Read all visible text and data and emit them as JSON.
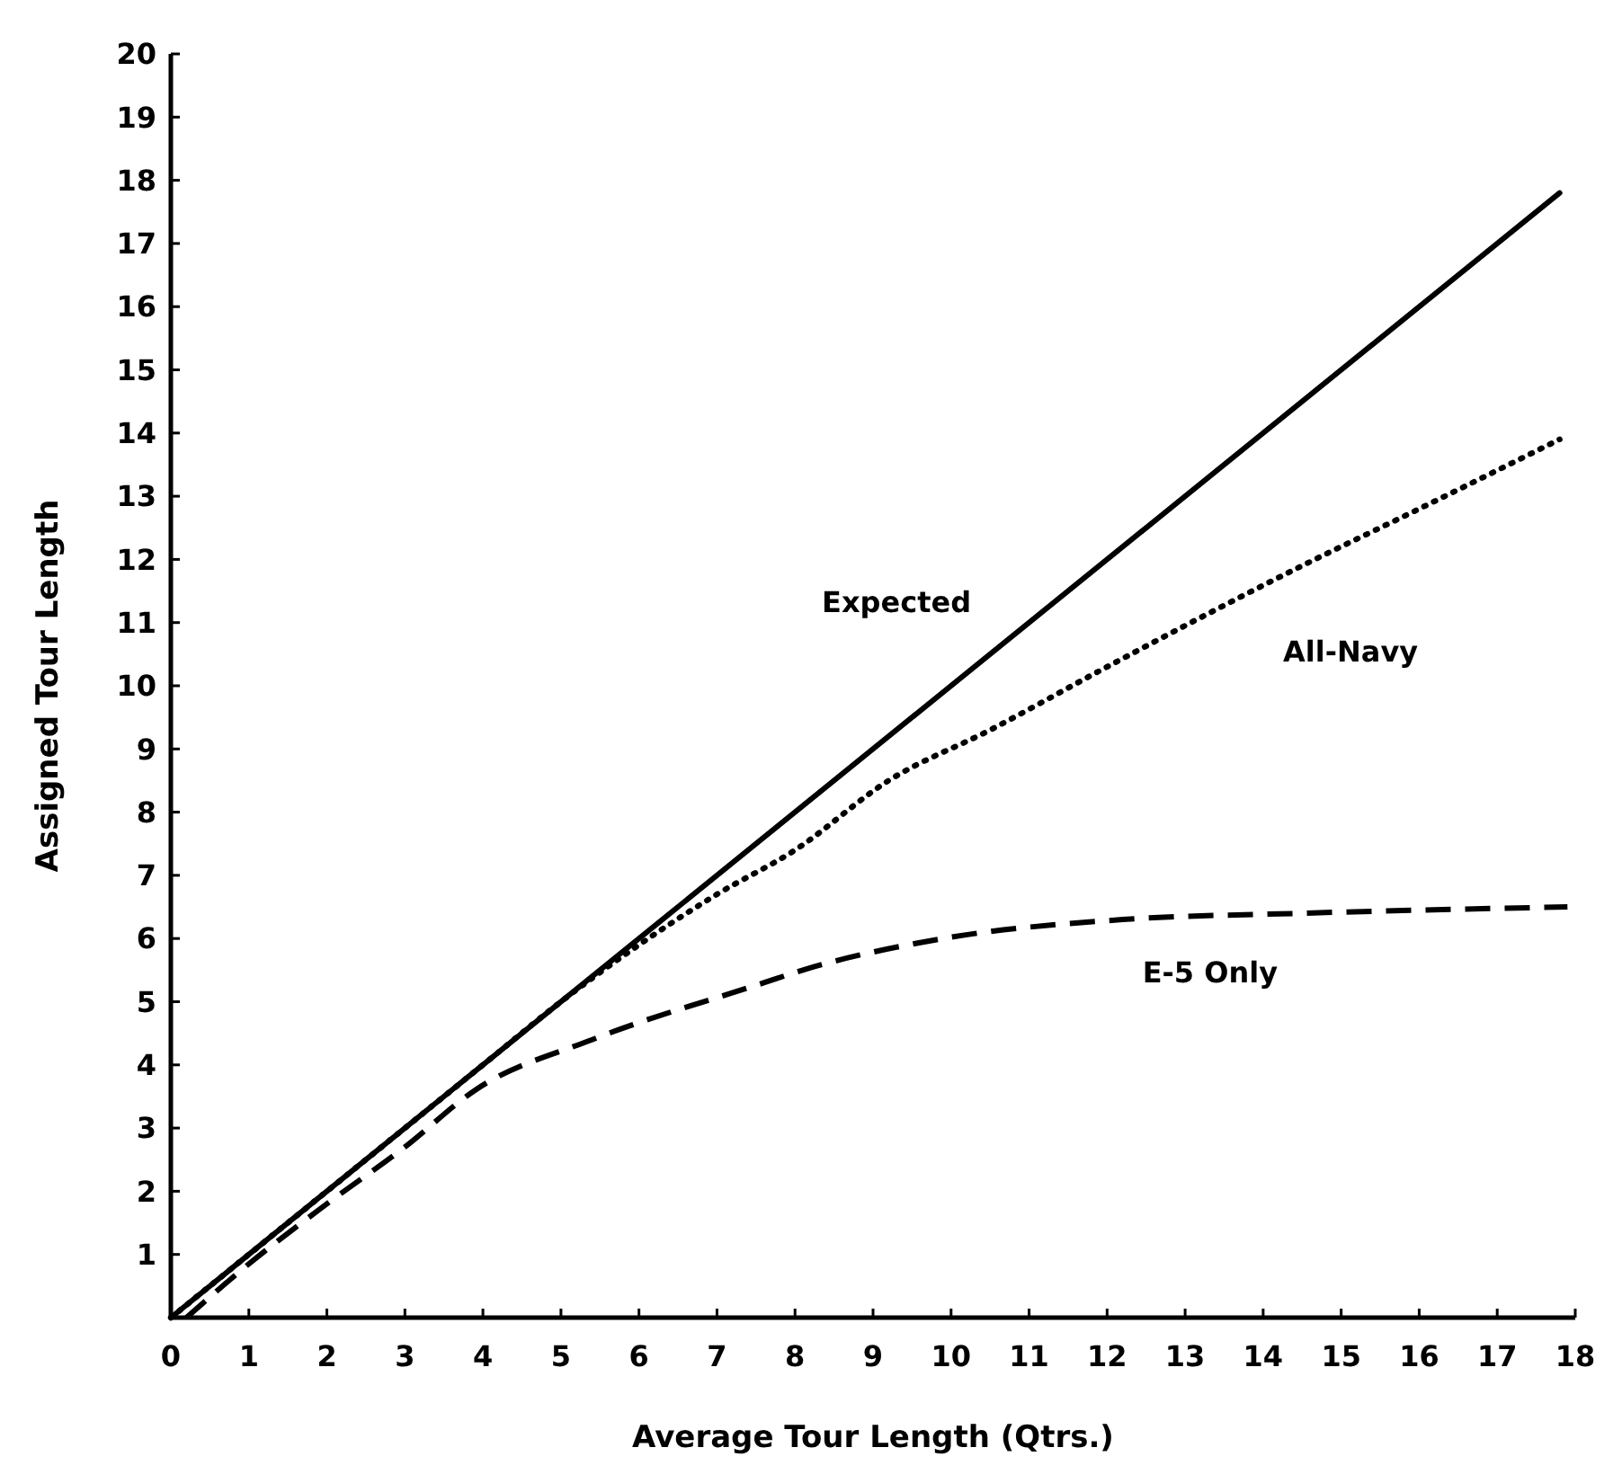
{
  "chart_data": {
    "type": "line",
    "xlabel": "Average Tour Length (Qtrs.)",
    "ylabel": "Assigned Tour Length",
    "xlim": [
      0,
      18
    ],
    "ylim": [
      0,
      20
    ],
    "xticks": [
      0,
      1,
      2,
      3,
      4,
      5,
      6,
      7,
      8,
      9,
      10,
      11,
      12,
      13,
      14,
      15,
      16,
      17,
      18
    ],
    "yticks": [
      1,
      2,
      3,
      4,
      5,
      6,
      7,
      8,
      9,
      10,
      11,
      12,
      13,
      14,
      15,
      16,
      17,
      18,
      19,
      20
    ],
    "grid": false,
    "series": [
      {
        "name": "Expected",
        "color": "#000000",
        "line_style": "solid",
        "x": [
          0,
          17.8
        ],
        "values": [
          0,
          17.8
        ]
      },
      {
        "name": "All-Navy",
        "color": "#000000",
        "line_style": "dotted",
        "x": [
          0,
          2,
          4,
          5,
          6,
          7,
          8,
          9.2,
          10.5,
          12,
          14.5,
          16,
          17.8
        ],
        "values": [
          0,
          2,
          4,
          5,
          5.9,
          6.7,
          7.4,
          8.5,
          9.3,
          10.3,
          11.9,
          12.8,
          13.9
        ]
      },
      {
        "name": "E-5 Only",
        "color": "#000000",
        "line_style": "dashed",
        "x": [
          0.2,
          1,
          2,
          3,
          3.9,
          5.4,
          7.6,
          8.1,
          9.9,
          12.2,
          14.5,
          17.9
        ],
        "values": [
          0,
          0.85,
          1.8,
          2.7,
          3.6,
          4.4,
          5.3,
          5.5,
          6.0,
          6.3,
          6.4,
          6.5
        ]
      }
    ]
  }
}
